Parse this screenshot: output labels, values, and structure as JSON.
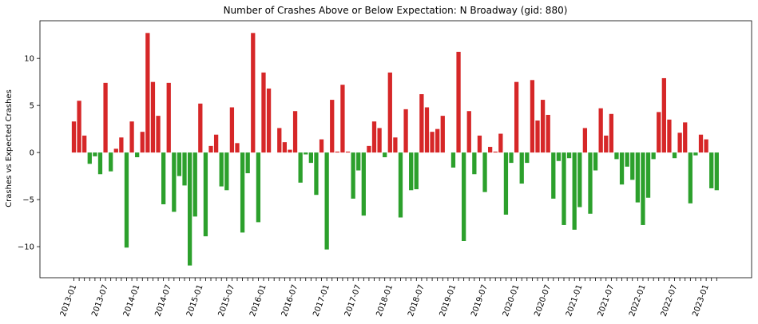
{
  "chart_data": {
    "type": "bar",
    "title": "Number of Crashes Above or Below Expectation: N Broadway (gid: 880)",
    "xlabel": "",
    "ylabel": "Crashes vs Expected Crashes",
    "ylim": [
      -13.3,
      14.0
    ],
    "yticks": [
      -10,
      -5,
      0,
      5,
      10
    ],
    "ytick_labels": [
      "−10",
      "−5",
      "0",
      "5",
      "10"
    ],
    "grid": false,
    "colors": {
      "positive": "#d62728",
      "negative": "#2ca02c"
    },
    "x_start": "2013-01",
    "xtick_labels": [
      "2013-01",
      "2013-07",
      "2014-01",
      "2014-07",
      "2015-01",
      "2015-07",
      "2016-01",
      "2016-07",
      "2017-01",
      "2017-07",
      "2018-01",
      "2018-07",
      "2019-01",
      "2019-07",
      "2020-01",
      "2020-07",
      "2021-01",
      "2021-07",
      "2022-01",
      "2022-07",
      "2023-01"
    ],
    "values": [
      3.3,
      5.5,
      1.8,
      -1.2,
      -0.4,
      -2.3,
      7.4,
      -2.0,
      0.4,
      1.6,
      -10.1,
      3.3,
      -0.5,
      2.2,
      12.7,
      7.5,
      3.9,
      -5.5,
      7.4,
      -6.3,
      -2.5,
      -3.5,
      -12.0,
      -6.8,
      5.2,
      -8.9,
      0.7,
      1.9,
      -3.6,
      -4.0,
      4.8,
      1.0,
      -8.5,
      -2.2,
      12.7,
      -7.4,
      8.5,
      6.8,
      0.0,
      2.6,
      1.1,
      0.3,
      4.4,
      -3.2,
      -0.2,
      -1.1,
      -4.5,
      1.4,
      -10.3,
      5.6,
      0.1,
      7.2,
      0.1,
      -4.9,
      -1.9,
      -6.7,
      0.7,
      3.3,
      2.6,
      -0.5,
      8.5,
      1.6,
      -6.9,
      4.6,
      -4.0,
      -3.9,
      6.2,
      4.8,
      2.2,
      2.5,
      3.9,
      0.0,
      -1.6,
      10.7,
      -9.4,
      4.4,
      -2.3,
      1.8,
      -4.2,
      0.6,
      0.1,
      2.0,
      -6.6,
      -1.1,
      7.5,
      -3.3,
      -1.1,
      7.7,
      3.4,
      5.6,
      4.0,
      -4.9,
      -0.9,
      -7.7,
      -0.6,
      -8.2,
      -5.8,
      2.6,
      -6.5,
      -1.9,
      4.7,
      1.8,
      4.1,
      -0.7,
      -3.4,
      -1.5,
      -2.9,
      -5.3,
      -7.7,
      -4.8,
      -0.7,
      4.3,
      7.9,
      3.5,
      -0.6,
      2.1,
      3.2,
      -5.4,
      -0.3,
      1.9,
      1.4,
      -3.8,
      -4.0
    ]
  }
}
